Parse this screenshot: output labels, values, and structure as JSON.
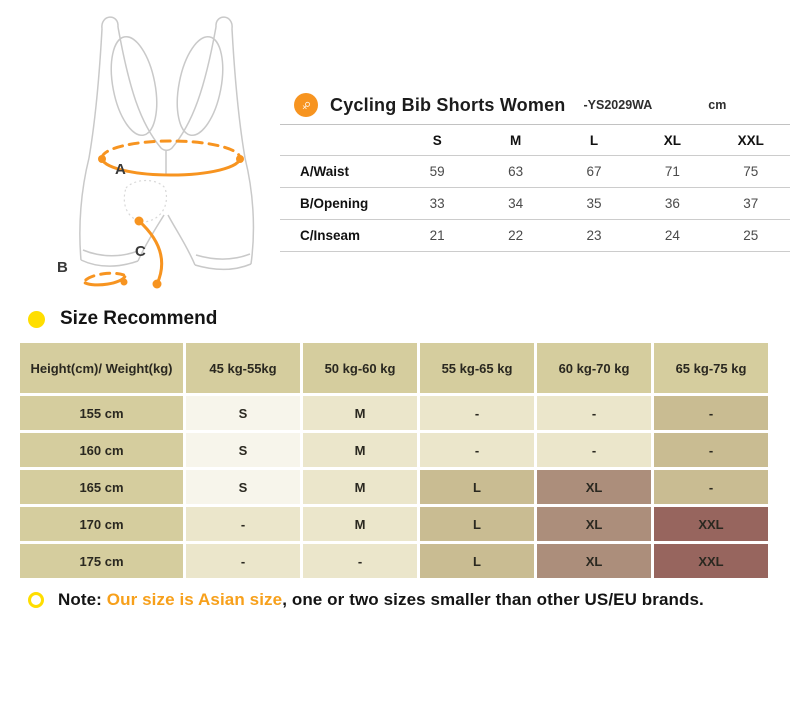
{
  "colors": {
    "accent_orange": "#F79420",
    "bullet_yellow": "#FFDE00",
    "note_highlight": "#F7A01B",
    "khaki": "#D5CD9E",
    "cream": "#F7F5EB",
    "light": "#EBE6CB",
    "tan": "#C9BC92",
    "mauve": "#AC8E7B",
    "brown": "#97655E"
  },
  "figure": {
    "icon": "female-symbol",
    "labels": {
      "a": "A",
      "b": "B",
      "c": "C"
    }
  },
  "spec_table": {
    "title": "Cycling Bib Shorts Women",
    "model": "-YS2029WA",
    "unit": "cm",
    "columns": [
      "S",
      "M",
      "L",
      "XL",
      "XXL"
    ],
    "rows": [
      {
        "label": "A/Waist",
        "values": [
          "59",
          "63",
          "67",
          "71",
          "75"
        ]
      },
      {
        "label": "B/Opening",
        "values": [
          "33",
          "34",
          "35",
          "36",
          "37"
        ]
      },
      {
        "label": "C/Inseam",
        "values": [
          "21",
          "22",
          "23",
          "24",
          "25"
        ]
      }
    ]
  },
  "size_recommend": {
    "heading": "Size Recommend",
    "columns": [
      "Height(cm)/ Weight(kg)",
      "45 kg-55kg",
      "50 kg-60 kg",
      "55 kg-65 kg",
      "60 kg-70 kg",
      "65 kg-75 kg"
    ],
    "rows": [
      {
        "height": "155 cm",
        "cells": [
          {
            "v": "S",
            "tone": "cream"
          },
          {
            "v": "M",
            "tone": "light"
          },
          {
            "v": "-",
            "tone": "light"
          },
          {
            "v": "-",
            "tone": "light"
          },
          {
            "v": "-",
            "tone": "tan"
          }
        ]
      },
      {
        "height": "160 cm",
        "cells": [
          {
            "v": "S",
            "tone": "cream"
          },
          {
            "v": "M",
            "tone": "light"
          },
          {
            "v": "-",
            "tone": "light"
          },
          {
            "v": "-",
            "tone": "light"
          },
          {
            "v": "-",
            "tone": "tan"
          }
        ]
      },
      {
        "height": "165 cm",
        "cells": [
          {
            "v": "S",
            "tone": "cream"
          },
          {
            "v": "M",
            "tone": "light"
          },
          {
            "v": "L",
            "tone": "tan"
          },
          {
            "v": "XL",
            "tone": "mauve"
          },
          {
            "v": "-",
            "tone": "tan"
          }
        ]
      },
      {
        "height": "170 cm",
        "cells": [
          {
            "v": "-",
            "tone": "light"
          },
          {
            "v": "M",
            "tone": "light"
          },
          {
            "v": "L",
            "tone": "tan"
          },
          {
            "v": "XL",
            "tone": "mauve"
          },
          {
            "v": "XXL",
            "tone": "brown"
          }
        ]
      },
      {
        "height": "175 cm",
        "cells": [
          {
            "v": "-",
            "tone": "light"
          },
          {
            "v": "-",
            "tone": "light"
          },
          {
            "v": "L",
            "tone": "tan"
          },
          {
            "v": "XL",
            "tone": "mauve"
          },
          {
            "v": "XXL",
            "tone": "brown"
          }
        ]
      }
    ]
  },
  "note": {
    "prefix": "Note: ",
    "highlight": "Our size is Asian size",
    "rest": ", one or two sizes smaller than other US/EU brands."
  }
}
